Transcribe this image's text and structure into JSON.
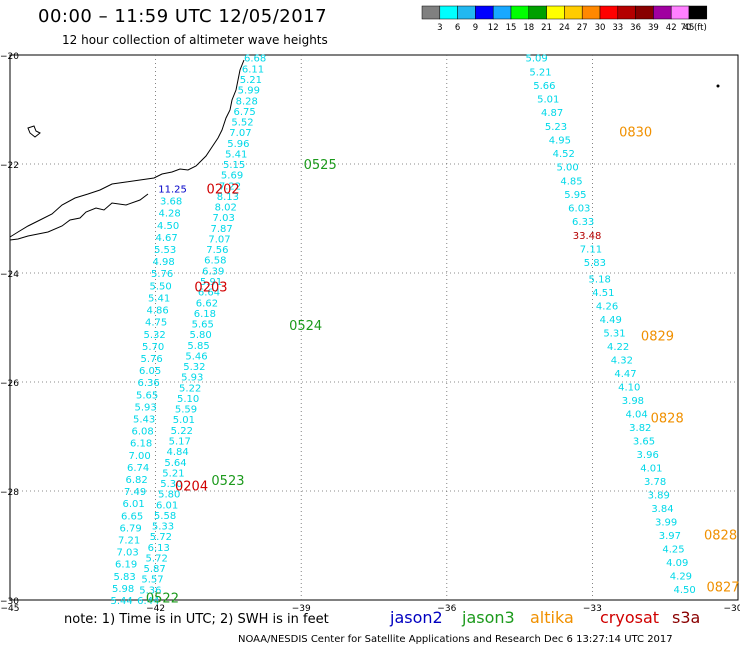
{
  "title": "00:00 – 11:59 UTC 12/05/2017",
  "subtitle": "12 hour collection of altimeter wave heights",
  "colorbar": {
    "colors": [
      "#808080",
      "#00ffff",
      "#22b8f0",
      "#0000ff",
      "#18a8ff",
      "#00ff00",
      "#00a000",
      "#ffff00",
      "#ffcc00",
      "#ff8800",
      "#ff0000",
      "#b40000",
      "#880000",
      "#a000a0",
      "#ff80ff",
      "#000000"
    ],
    "labels": [
      "3",
      "6",
      "9",
      "12",
      "15",
      "18",
      "21",
      "24",
      "27",
      "30",
      "33",
      "36",
      "39",
      "42",
      "45",
      "70 (ft)"
    ]
  },
  "axes": {
    "lon": {
      "min": -45,
      "max": -30,
      "ticks": [
        -45,
        -42,
        -39,
        -36,
        -33,
        -30
      ],
      "labels": [
        "−45",
        "−42",
        "−39",
        "−36",
        "−33",
        "−30"
      ]
    },
    "lat": {
      "min": -30,
      "max": -20,
      "ticks": [
        -20,
        -22,
        -24,
        -26,
        -28,
        -30
      ],
      "labels": [
        "−20",
        "−22",
        "−24",
        "−26",
        "−28",
        "−30"
      ]
    }
  },
  "note": "note:  1) Time is in UTC;  2) SWH is in feet",
  "satellites": [
    {
      "name": "jason2",
      "color": "#0000c0"
    },
    {
      "name": "jason3",
      "color": "#1c9a1c"
    },
    {
      "name": "altika",
      "color": "#f09000"
    },
    {
      "name": "cryosat",
      "color": "#d00000"
    },
    {
      "name": "s3a",
      "color": "#8a0000"
    }
  ],
  "footer": "NOAA/NESDIS Center for Satellite Applications and Research    Dec  6 13:27:14 UTC 2017",
  "passes": [
    {
      "values": [
        "6.68",
        "6.11",
        "5.21",
        "5.99",
        "8.28",
        "6.75",
        "5.52",
        "7.07",
        "5.96",
        "5.41",
        "5.15",
        "5.69",
        "7.22",
        "8.13",
        "8.02",
        "7.03",
        "7.87",
        "7.07",
        "7.56",
        "6.58",
        "6.39",
        "5.91",
        "6.64",
        "6.62",
        "6.18",
        "5.65",
        "5.80",
        "5.85",
        "5.46",
        "5.32",
        "5.93",
        "5.22",
        "5.10",
        "5.59",
        "5.01",
        "5.22",
        "5.17",
        "4.84",
        "5.64",
        "5.21",
        "5.30",
        "5.80",
        "6.01",
        "5.58",
        "5.33",
        "5.72",
        "6.13",
        "5.72",
        "5.87",
        "5.57",
        "5.36",
        "6.44"
      ],
      "start": [
        -39.95,
        -20.05
      ],
      "end": [
        -42.15,
        -30.0
      ],
      "time_labels": [
        {
          "text": "0525",
          "lon": -38.95,
          "lat": -22.0,
          "color": "#1c9a1c"
        },
        {
          "text": "0524",
          "lon": -39.25,
          "lat": -24.95,
          "color": "#1c9a1c"
        },
        {
          "text": "0523",
          "lon": -40.85,
          "lat": -27.8,
          "color": "#1c9a1c"
        },
        {
          "text": "0522",
          "lon": -42.2,
          "lat": -29.95,
          "color": "#1c9a1c"
        }
      ]
    },
    {
      "values": [
        "11.25",
        "3.68",
        "4.28",
        "4.50",
        "4.67",
        "5.53",
        "4.98",
        "5.76",
        "5.50",
        "5.41",
        "4.86",
        "4.75",
        "5.32",
        "5.70",
        "5.76",
        "6.05",
        "6.36",
        "5.65",
        "5.93",
        "5.43",
        "6.08",
        "6.18",
        "7.00",
        "6.74",
        "6.82",
        "7.49",
        "6.01",
        "6.65",
        "6.79",
        "7.21",
        "7.03",
        "6.19",
        "5.83",
        "5.98",
        "5.44"
      ],
      "start": [
        -41.65,
        -22.45
      ],
      "end": [
        -42.7,
        -30.0
      ],
      "time_labels": [
        {
          "text": "0202",
          "lon": -40.95,
          "lat": -22.45,
          "color": "#d00000"
        },
        {
          "text": "0203",
          "lon": -41.2,
          "lat": -24.25,
          "color": "#d00000"
        },
        {
          "text": "0204",
          "lon": -41.6,
          "lat": -27.9,
          "color": "#d00000"
        }
      ]
    },
    {
      "values": [
        "5.09",
        "5.21",
        "5.66",
        "5.01",
        "4.87",
        "5.23",
        "4.95",
        "4.52",
        "5.00",
        "4.85",
        "5.95",
        "6.03",
        "6.33",
        "33.48",
        "7.11",
        "5.83"
      ],
      "start": [
        -34.15,
        -20.05
      ],
      "end": [
        -32.95,
        -23.8
      ],
      "time_labels": [
        {
          "text": "0830",
          "lon": -32.45,
          "lat": -21.4,
          "color": "#f09000"
        }
      ]
    },
    {
      "values": [
        "5.18",
        "4.51",
        "4.26",
        "4.49",
        "5.31",
        "4.22",
        "4.32",
        "4.47",
        "4.10",
        "3.98",
        "4.04",
        "3.82",
        "3.65",
        "3.96",
        "4.01",
        "3.78",
        "3.89",
        "3.84",
        "3.99",
        "3.97",
        "4.25",
        "4.09",
        "4.29",
        "4.50"
      ],
      "start": [
        -32.85,
        -24.1
      ],
      "end": [
        -31.1,
        -29.8
      ],
      "time_labels": [
        {
          "text": "0829",
          "lon": -32.0,
          "lat": -25.15,
          "color": "#f09000"
        },
        {
          "text": "0828",
          "lon": -31.8,
          "lat": -26.65,
          "color": "#f09000"
        },
        {
          "text": "0828",
          "lon": -30.7,
          "lat": -28.8,
          "color": "#f09000"
        },
        {
          "text": "0827",
          "lon": -30.65,
          "lat": -29.75,
          "color": "#f09000"
        }
      ]
    }
  ]
}
